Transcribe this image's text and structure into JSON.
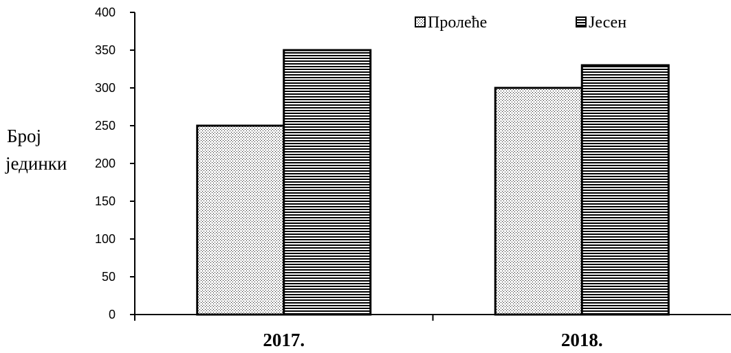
{
  "chart_data": {
    "type": "bar",
    "categories": [
      "2017.",
      "2018."
    ],
    "series": [
      {
        "name": "Пролеће",
        "values": [
          250,
          300
        ],
        "pattern": "dots"
      },
      {
        "name": "Јесен",
        "values": [
          350,
          330
        ],
        "pattern": "horizontal-lines"
      }
    ],
    "ylabel_lines": [
      "Број",
      "јединки"
    ],
    "ylim": [
      0,
      400
    ],
    "yticks": [
      0,
      50,
      100,
      150,
      200,
      250,
      300,
      350,
      400
    ],
    "grid": false,
    "legend_position": "top-right",
    "colors": {
      "bar_fill": "#ffffff",
      "bar_stroke": "#000000",
      "axis": "#000000"
    }
  }
}
